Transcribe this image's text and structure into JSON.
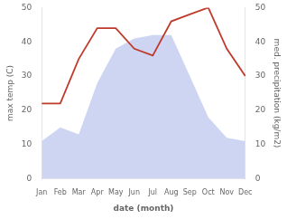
{
  "chart_data": {
    "type": "line",
    "categories": [
      "Jan",
      "Feb",
      "Mar",
      "Apr",
      "May",
      "Jun",
      "Jul",
      "Aug",
      "Sep",
      "Oct",
      "Nov",
      "Dec"
    ],
    "xlabel": "date (month)",
    "ylabel": "max temp (C)",
    "y2label": "med. precipitation (kg/m2)",
    "series": [
      {
        "type": "area",
        "color": "#c5cef0",
        "values": [
          11,
          15,
          13,
          28,
          38,
          41,
          42,
          42,
          30,
          18,
          12,
          11
        ]
      },
      {
        "type": "line",
        "color": "#c0392b",
        "axis": "y2",
        "values": [
          22,
          22,
          35,
          44,
          44,
          38,
          36,
          46,
          48,
          50,
          38,
          30
        ]
      }
    ],
    "ylim": [
      0,
      50
    ],
    "yticks": [
      0,
      10,
      20,
      30,
      40,
      50
    ],
    "y2lim": [
      0,
      50
    ],
    "y2ticks": [
      0,
      10,
      20,
      30,
      40,
      50
    ],
    "grid": false
  }
}
